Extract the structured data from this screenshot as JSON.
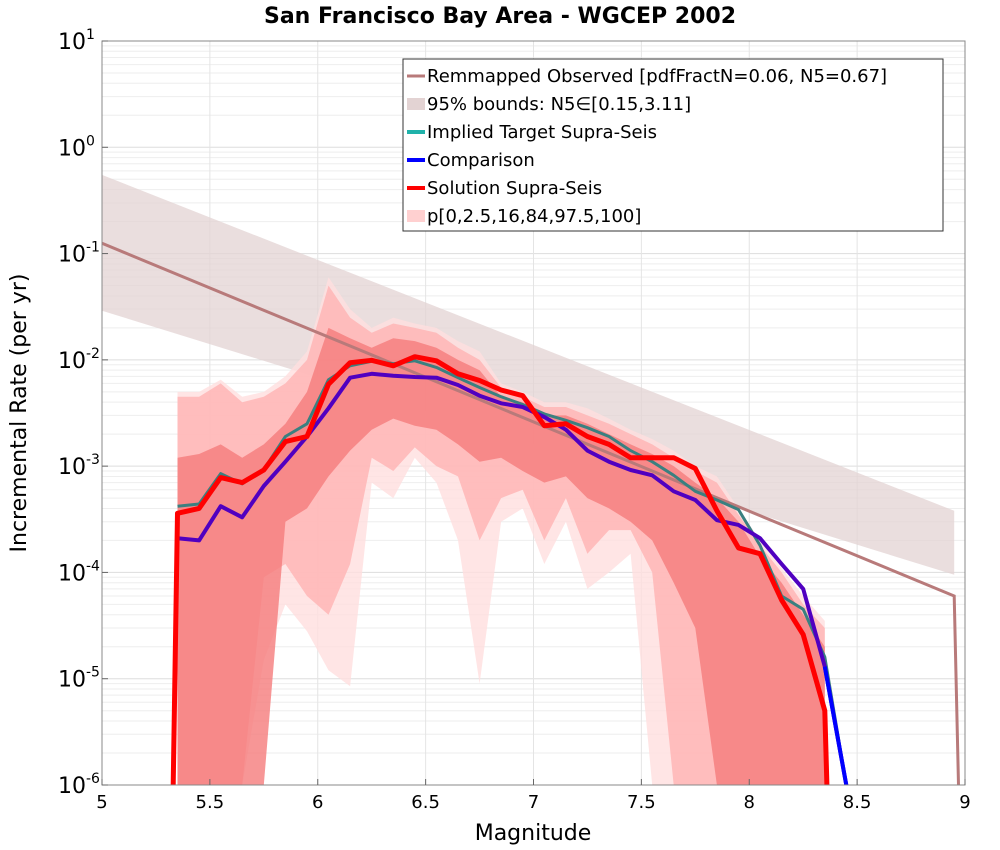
{
  "chart_data": {
    "type": "line",
    "title": "San Francisco Bay Area - WGCEP 2002",
    "xlabel": "Magnitude",
    "ylabel": "Incremental Rate (per yr)",
    "xlim": [
      5,
      9
    ],
    "ylim": [
      1e-06,
      10
    ],
    "yscale": "log",
    "grid": true,
    "legend_position": "top-right",
    "x_ticks": [
      "5",
      "5.5",
      "6",
      "6.5",
      "7",
      "7.5",
      "8",
      "8.5",
      "9"
    ],
    "y_ticks": [
      {
        "base": "10",
        "exp": "-6"
      },
      {
        "base": "10",
        "exp": "-5"
      },
      {
        "base": "10",
        "exp": "-4"
      },
      {
        "base": "10",
        "exp": "-3"
      },
      {
        "base": "10",
        "exp": "-2"
      },
      {
        "base": "10",
        "exp": "-1"
      },
      {
        "base": "10",
        "exp": "0"
      },
      {
        "base": "10",
        "exp": "1"
      }
    ],
    "legend": [
      {
        "label": "Remmapped Observed [pdfFractN=0.06, N5=0.67]",
        "color": "#b87a7a",
        "kind": "line"
      },
      {
        "label": "95% bounds: N5∈[0.15,3.11]",
        "color": "#e3d3d3",
        "kind": "box"
      },
      {
        "label": "Implied Target Supra-Seis",
        "color": "#20b2aa",
        "kind": "line"
      },
      {
        "label": "Comparison",
        "color": "#0000ff",
        "kind": "line"
      },
      {
        "label": "Solution Supra-Seis",
        "color": "#ff0000",
        "kind": "line"
      },
      {
        "label": "p[0,2.5,16,84,97.5,100]",
        "color": "#ffd0d0",
        "kind": "box"
      }
    ],
    "bounds_band": {
      "x": [
        5.0,
        8.95
      ],
      "lower": [
        0.029,
        9.5e-05
      ],
      "upper": [
        0.55,
        0.00038
      ]
    },
    "observed": {
      "x": [
        5.0,
        8.95,
        8.97
      ],
      "y": [
        0.125,
        6e-05,
        1e-06
      ]
    },
    "percentile_bands": {
      "x": [
        5.35,
        5.45,
        5.55,
        5.65,
        5.75,
        5.85,
        5.95,
        6.05,
        6.15,
        6.25,
        6.35,
        6.45,
        6.55,
        6.65,
        6.75,
        6.85,
        6.95,
        7.05,
        7.15,
        7.25,
        7.35,
        7.45,
        7.55,
        7.65,
        7.75,
        7.85,
        7.95,
        8.05,
        8.15,
        8.25,
        8.35
      ],
      "p0_100": {
        "lower": [
          1e-06,
          1e-06,
          1e-06,
          1e-06,
          1.5e-05,
          5e-05,
          2.8e-05,
          1.2e-05,
          8.5e-06,
          0.0007,
          0.0005,
          0.0012,
          0.0007,
          0.0002,
          9e-06,
          0.0003,
          0.0004,
          0.00012,
          0.0003,
          7e-05,
          0.0001,
          0.00015,
          1e-06,
          1e-06,
          1e-06,
          1e-06,
          1e-06,
          1e-06,
          1e-06,
          1e-06,
          1e-06
        ],
        "upper": [
          0.005,
          0.005,
          0.0065,
          0.0045,
          0.005,
          0.007,
          0.012,
          0.06,
          0.03,
          0.02,
          0.025,
          0.022,
          0.02,
          0.015,
          0.012,
          0.006,
          0.005,
          0.004,
          0.004,
          0.0035,
          0.0028,
          0.0022,
          0.0018,
          0.0014,
          0.001,
          0.0008,
          0.0004,
          0.0002,
          0.00011,
          6e-05,
          3.5e-05
        ]
      },
      "p2_5_97_5": {
        "lower": [
          1e-06,
          1e-06,
          1e-06,
          1e-06,
          9e-05,
          0.00012,
          6e-05,
          4e-05,
          0.00012,
          0.0012,
          0.0009,
          0.0015,
          0.001,
          0.0008,
          0.0002,
          0.0005,
          0.0006,
          0.0002,
          0.0005,
          0.00015,
          0.00025,
          0.00025,
          0.0001,
          1e-06,
          1e-06,
          1e-06,
          1e-06,
          1e-06,
          1e-06,
          1e-06,
          1e-06
        ],
        "upper": [
          0.0045,
          0.0045,
          0.006,
          0.004,
          0.0045,
          0.006,
          0.01,
          0.05,
          0.025,
          0.018,
          0.022,
          0.02,
          0.018,
          0.013,
          0.01,
          0.0055,
          0.0045,
          0.0036,
          0.0036,
          0.003,
          0.0025,
          0.002,
          0.0016,
          0.0012,
          0.0009,
          0.0007,
          0.00035,
          0.00018,
          0.0001,
          5e-05,
          3e-05
        ]
      },
      "p16_84": {
        "lower": [
          1e-06,
          1e-06,
          1e-06,
          1e-06,
          1e-06,
          0.0003,
          0.0004,
          0.0008,
          0.0014,
          0.0022,
          0.0028,
          0.0024,
          0.0022,
          0.0016,
          0.0011,
          0.0012,
          0.0009,
          0.0007,
          0.0008,
          0.0005,
          0.0004,
          0.0003,
          0.0002,
          8e-05,
          3e-05,
          1e-06,
          1e-06,
          1e-06,
          1e-06,
          1e-06,
          1e-06
        ],
        "upper": [
          0.0012,
          0.0013,
          0.0016,
          0.0012,
          0.0016,
          0.0025,
          0.005,
          0.02,
          0.016,
          0.013,
          0.016,
          0.015,
          0.013,
          0.01,
          0.008,
          0.0045,
          0.004,
          0.003,
          0.003,
          0.0025,
          0.002,
          0.0016,
          0.0013,
          0.001,
          0.0007,
          0.0005,
          0.0003,
          0.00014,
          8e-05,
          4e-05,
          2e-05
        ]
      }
    },
    "series": [
      {
        "name": "Implied Target Supra-Seis",
        "color": "#3a8080",
        "x": [
          5.35,
          5.45,
          5.55,
          5.65,
          5.75,
          5.85,
          5.95,
          6.05,
          6.15,
          6.25,
          6.35,
          6.45,
          6.55,
          6.65,
          6.75,
          6.85,
          6.95,
          7.05,
          7.15,
          7.25,
          7.35,
          7.45,
          7.55,
          7.65,
          7.75,
          7.85,
          7.95,
          8.05,
          8.15,
          8.25,
          8.35,
          8.45
        ],
        "y": [
          0.00042,
          0.00044,
          0.00085,
          0.00068,
          0.00093,
          0.0019,
          0.0025,
          0.0065,
          0.0088,
          0.0097,
          0.0092,
          0.0098,
          0.0085,
          0.0068,
          0.0055,
          0.0045,
          0.0038,
          0.0031,
          0.0027,
          0.0023,
          0.0019,
          0.0014,
          0.0011,
          0.00082,
          0.00058,
          0.00048,
          0.00039,
          0.00018,
          6e-05,
          4.5e-05,
          1.6e-05,
          1e-06
        ]
      },
      {
        "name": "Comparison",
        "color": "#5000c0",
        "x": [
          5.35,
          5.45,
          5.55,
          5.65,
          5.75,
          5.85,
          5.95,
          6.05,
          6.15,
          6.25,
          6.35,
          6.45,
          6.55,
          6.65,
          6.75,
          6.85,
          6.95,
          7.05,
          7.15,
          7.25,
          7.35,
          7.45,
          7.55,
          7.65,
          7.75,
          7.85,
          7.95,
          8.05,
          8.15,
          8.25,
          8.35,
          8.45
        ],
        "y": [
          0.00021,
          0.0002,
          0.00042,
          0.00033,
          0.00065,
          0.0011,
          0.0019,
          0.0035,
          0.0068,
          0.0074,
          0.0071,
          0.0069,
          0.0068,
          0.0058,
          0.0046,
          0.0039,
          0.0036,
          0.0029,
          0.0022,
          0.0014,
          0.0011,
          0.00092,
          0.00082,
          0.00058,
          0.00048,
          0.00031,
          0.00028,
          0.00021,
          0.00012,
          7e-05,
          1.3e-05,
          1e-06
        ]
      },
      {
        "name": "Solution Supra-Seis",
        "color": "#ff0000",
        "x": [
          5.33,
          5.35,
          5.45,
          5.55,
          5.65,
          5.75,
          5.85,
          5.95,
          6.05,
          6.15,
          6.25,
          6.35,
          6.45,
          6.55,
          6.65,
          6.75,
          6.85,
          6.95,
          7.05,
          7.15,
          7.25,
          7.35,
          7.45,
          7.55,
          7.65,
          7.75,
          7.85,
          7.95,
          8.05,
          8.15,
          8.25,
          8.35,
          8.36
        ],
        "y": [
          1e-06,
          0.00036,
          0.0004,
          0.00078,
          0.0007,
          0.00092,
          0.0017,
          0.0019,
          0.0059,
          0.0094,
          0.0099,
          0.0088,
          0.0107,
          0.0098,
          0.0074,
          0.0064,
          0.0052,
          0.0046,
          0.0024,
          0.0025,
          0.0019,
          0.0016,
          0.0012,
          0.0012,
          0.0012,
          0.00095,
          0.00038,
          0.00017,
          0.00015,
          5.5e-05,
          2.6e-05,
          5e-06,
          1e-06
        ]
      }
    ]
  }
}
